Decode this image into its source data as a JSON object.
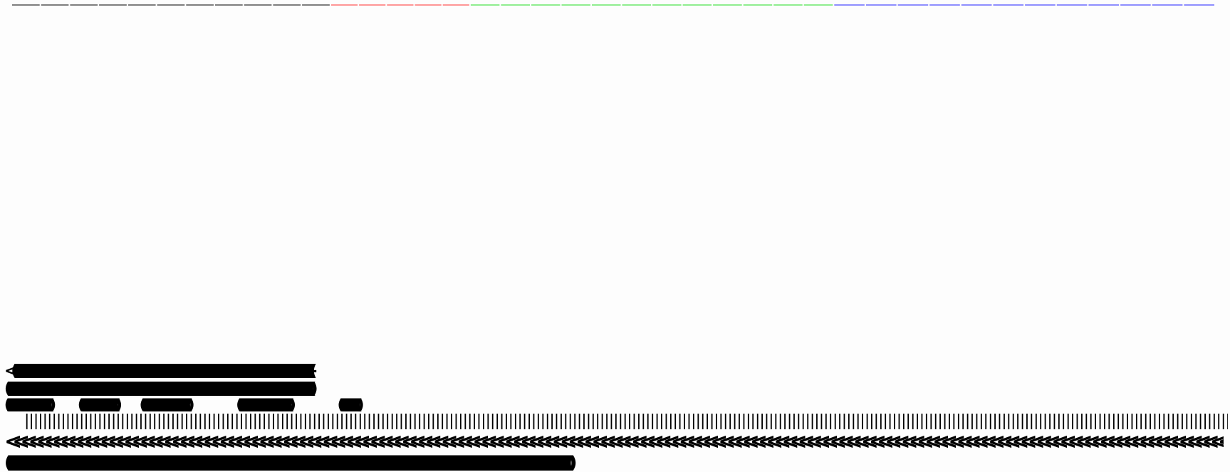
{
  "top_strip": {
    "segments": [
      {
        "color": "#000000",
        "from": 0.0,
        "to": 0.265,
        "dash_count": 11
      },
      {
        "color": "#ff3030",
        "from": 0.265,
        "to": 0.381,
        "dash_count": 5
      },
      {
        "color": "#22dd22",
        "from": 0.381,
        "to": 0.683,
        "dash_count": 12
      },
      {
        "color": "#2020ff",
        "from": 0.683,
        "to": 1.0,
        "dash_count": 12
      }
    ]
  },
  "glyph_rows": [
    {
      "text": "<(((((((((((((((((((((((((((((((((((((((((((((((((((((((((((((((((((((((((((((((((((((((((((((((((((((((((((((((((((((((((((((((((((((((((((((((((((((((((((((((((((((((((((((((((((((((((((((((((((((((((((((((((((((((((((((((((((((((((((((((((((((((((((((((((((((((((((((((((((((((((((((((((((((((((((((((((((((((((((((((((((((((((((((((((((((((((((((((((((((((((((((((((((((((((((((((((((((((((((((((-"
    },
    {
      "text": "((((((((((((((((((((((((((((((((((((((((((((((((((((((((((((((((((((((((((((((((((((((((((((((((((((((((((((((((((((((((((((((((((((((((((((((((((((((((((((((((((((((((((((((((((((((((((((((((((((((((((((((((((((((((((((((((((((((((((((((((((((((((((((((((((((((((((((((((((((((((((((((((((((((((((((((((((((((((((((((((((((((((((((((((((((((((((((((((((((((((((((((((((((((((((((((((((((((((((((((((((((((())"
    },
    {
      "text": "((((((((((((((((((((((((((((((((((((((((((((((((((((((())___________________(((((((((((((((((((((((((((((((((((((((((((((())________________((((((((((((((((((((((((((((((((((((((((((((((((((((((((((())_________________________________((((((((((((((((((((((((((((((((((((((((((((((((((((((((((((((((())_________________________________(((((((((((((((((((((((())"
    },
    {
      "text": "||||||||||||||||||||||||||||||||||||||||||||||||||||||||||||||||||||||||||||||||||||||||||||||||||||||||||||||||||||||||||||||||||||||||||||||||||||||||||||||||||||||||||||||||||||||||||||||||||||||||||||||||||||||||||||||||||||||||||||||||||||||||||||||||||||||||||||||||||||||||||||||||||||||||||||||||||||||||||||||||||||||||||||||||||||||"
    },
    {
      "text": "<<<<<<<<<<<<<<<<<<<<<<<<<<<<<<<<<<<<<<<<<<<<<<<<<<<<<<<<<<<<<<<<<<<<<<<<<<<<<<<<<<<<<<<<<<<<<<<<<<<<<<<<<<<<<<<<<<<<<<<<<<<<<<<<<<<<<<<<<<<<<<<<<<<<<<<<<<<<<<<<<<<<<<<<<<<<<<<<<<<<<<<<<<<<<<<<<<<<<<<<<<<<<<<<<<<<<<<<<<<<<<<<<<<<<<<<<<<<<<<<<<<<<<<<<<<<<<<<<<<<<<<<<<<<<<<<<<<<<<<<<<<<<<<<<>"
    },
    {
      "text": "(((((((((((((((((((((((((((((((((((((((((((((((((((((((((((((((((((((((((((((((((((((((((((((((((((((((((((((((((((((((((((((((((((((((((((((((((((((((((((((((((((((((((((((((((((((((((((((((((((((((((((((((((((((((((((((((((((((((((((((((((((((((((((((((((((((((((((((((((((((((((((((((((((((((((((((((((((((((((((((((((((((((((((((((((((((((((((((((((((((((((((((((((((((((((((((((((((((((((((((((((())"
    }
  ]
}
